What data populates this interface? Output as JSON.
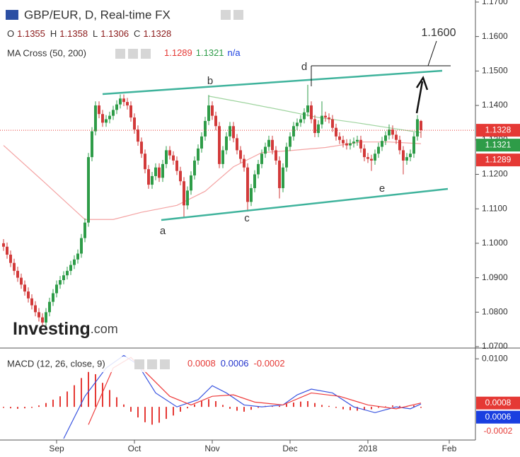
{
  "chart_data": [
    {
      "type": "candlestick",
      "title": "GBP/EUR, D, Real-time FX",
      "ohlc_legend": [
        {
          "label": "O",
          "value": 1.1355
        },
        {
          "label": "H",
          "value": 1.1358
        },
        {
          "label": "L",
          "value": 1.1306
        },
        {
          "label": "C",
          "value": 1.1328
        }
      ],
      "indicator": {
        "name": "MA Cross (50, 200)",
        "values": [
          1.1289,
          1.1321
        ],
        "colors": [
          "#e53935",
          "#2e9c48"
        ],
        "na": "n/a"
      },
      "colors": {
        "up": "#2e9c48",
        "down": "#d23a3a"
      },
      "open": [
        1.1,
        1.099,
        1.0967,
        1.0943,
        1.092,
        1.09,
        1.088,
        1.086,
        1.084,
        1.082,
        1.08,
        1.0785,
        1.077,
        1.08,
        1.083,
        1.0855,
        1.088,
        1.0893,
        1.0907,
        1.092,
        1.0937,
        1.0953,
        1.097,
        1.1015,
        1.106,
        1.125,
        1.1325,
        1.14,
        1.1375,
        1.135,
        1.136,
        1.137,
        1.1387,
        1.1403,
        1.142,
        1.141,
        1.14,
        1.1365,
        1.133,
        1.1295,
        1.126,
        1.1215,
        1.117,
        1.1195,
        1.122,
        1.119,
        1.123,
        1.127,
        1.1255,
        1.124,
        1.121,
        1.118,
        1.111,
        1.1153,
        1.1197,
        1.124,
        1.1275,
        1.131,
        1.1355,
        1.14,
        1.137,
        1.134,
        1.123,
        1.127,
        1.131,
        1.134,
        1.1305,
        1.127,
        1.1245,
        1.122,
        1.112,
        1.116,
        1.12,
        1.123,
        1.126,
        1.128,
        1.13,
        1.127,
        1.124,
        1.116,
        1.122,
        1.128,
        1.131,
        1.134,
        1.135,
        1.136,
        1.138,
        1.14,
        1.136,
        1.132,
        1.1345,
        1.137,
        1.1365,
        1.136,
        1.1335,
        1.131,
        1.13,
        1.129,
        1.1284,
        1.129,
        1.1295,
        1.13,
        1.1275,
        1.125,
        1.1245,
        1.124,
        1.126,
        1.128,
        1.1297,
        1.1313,
        1.133,
        1.1315,
        1.13,
        1.127,
        1.124,
        1.125,
        1.126,
        1.131,
        1.1355
      ],
      "high": [
        1.1012,
        1.1002,
        1.0979,
        1.0955,
        1.0932,
        1.0912,
        1.0892,
        1.0872,
        1.0852,
        1.0832,
        1.0812,
        1.0797,
        1.0812,
        1.0842,
        1.0867,
        1.0892,
        1.0905,
        1.0919,
        1.0932,
        1.0949,
        1.0965,
        1.0982,
        1.1027,
        1.1072,
        1.1262,
        1.1337,
        1.1412,
        1.1412,
        1.1387,
        1.1372,
        1.1382,
        1.1399,
        1.1415,
        1.1432,
        1.1432,
        1.1422,
        1.1412,
        1.1377,
        1.1342,
        1.1307,
        1.1272,
        1.1227,
        1.1207,
        1.1232,
        1.1232,
        1.1242,
        1.1282,
        1.1282,
        1.1267,
        1.1252,
        1.1222,
        1.1192,
        1.1165,
        1.1209,
        1.1252,
        1.1287,
        1.1322,
        1.1367,
        1.143,
        1.1412,
        1.1382,
        1.1352,
        1.1282,
        1.1322,
        1.1352,
        1.1352,
        1.1317,
        1.1282,
        1.1257,
        1.1232,
        1.1172,
        1.1212,
        1.1242,
        1.1272,
        1.1292,
        1.1312,
        1.1312,
        1.1282,
        1.1252,
        1.1232,
        1.1292,
        1.1322,
        1.1352,
        1.1362,
        1.1372,
        1.1392,
        1.146,
        1.1412,
        1.1372,
        1.1357,
        1.1412,
        1.1382,
        1.1377,
        1.1372,
        1.1347,
        1.1322,
        1.1312,
        1.1302,
        1.1302,
        1.1307,
        1.1312,
        1.1312,
        1.1287,
        1.1262,
        1.1257,
        1.1272,
        1.1292,
        1.1309,
        1.1325,
        1.1345,
        1.1342,
        1.1327,
        1.1312,
        1.1282,
        1.1262,
        1.1272,
        1.1322,
        1.1372,
        1.1358
      ],
      "low": [
        1.0978,
        1.0955,
        1.0931,
        1.0908,
        1.0888,
        1.0868,
        1.0848,
        1.0828,
        1.0808,
        1.0788,
        1.0773,
        1.0758,
        1.0758,
        1.0788,
        1.0818,
        1.0843,
        1.0868,
        1.0881,
        1.0895,
        1.0908,
        1.0925,
        1.0941,
        1.0958,
        1.1003,
        1.1048,
        1.1238,
        1.1313,
        1.1363,
        1.1338,
        1.1338,
        1.1348,
        1.1358,
        1.1375,
        1.1391,
        1.1398,
        1.1388,
        1.1353,
        1.1318,
        1.1283,
        1.1248,
        1.1203,
        1.1158,
        1.1158,
        1.1183,
        1.1178,
        1.1178,
        1.1218,
        1.1243,
        1.1228,
        1.1198,
        1.1168,
        1.1075,
        1.1098,
        1.1141,
        1.1185,
        1.1228,
        1.1263,
        1.1298,
        1.1343,
        1.1358,
        1.1328,
        1.1218,
        1.1218,
        1.1258,
        1.1298,
        1.1293,
        1.1258,
        1.1233,
        1.1208,
        1.1092,
        1.1108,
        1.1148,
        1.1188,
        1.1218,
        1.1248,
        1.1268,
        1.1258,
        1.1228,
        1.113,
        1.1148,
        1.1208,
        1.1268,
        1.1298,
        1.1328,
        1.1338,
        1.1348,
        1.1368,
        1.1348,
        1.1308,
        1.1308,
        1.1333,
        1.1353,
        1.1348,
        1.1323,
        1.1298,
        1.1288,
        1.1278,
        1.1272,
        1.1272,
        1.1278,
        1.1283,
        1.1263,
        1.1238,
        1.1233,
        1.121,
        1.1228,
        1.1248,
        1.1268,
        1.1285,
        1.1301,
        1.1303,
        1.1288,
        1.1258,
        1.12,
        1.1228,
        1.1238,
        1.1248,
        1.1298,
        1.1306
      ],
      "close": [
        1.099,
        1.0967,
        1.0943,
        1.092,
        1.09,
        1.088,
        1.086,
        1.084,
        1.082,
        1.08,
        1.0785,
        1.077,
        1.08,
        1.083,
        1.0855,
        1.088,
        1.0893,
        1.0907,
        1.092,
        1.0937,
        1.0953,
        1.097,
        1.1015,
        1.106,
        1.125,
        1.1325,
        1.14,
        1.1375,
        1.135,
        1.136,
        1.137,
        1.1387,
        1.1403,
        1.142,
        1.141,
        1.14,
        1.1365,
        1.133,
        1.1295,
        1.126,
        1.1215,
        1.117,
        1.1195,
        1.122,
        1.119,
        1.123,
        1.127,
        1.1255,
        1.124,
        1.121,
        1.118,
        1.111,
        1.1153,
        1.1197,
        1.124,
        1.1275,
        1.131,
        1.1355,
        1.14,
        1.137,
        1.134,
        1.123,
        1.127,
        1.131,
        1.134,
        1.1305,
        1.127,
        1.1245,
        1.122,
        1.112,
        1.116,
        1.12,
        1.123,
        1.126,
        1.128,
        1.13,
        1.127,
        1.124,
        1.116,
        1.122,
        1.128,
        1.131,
        1.134,
        1.135,
        1.136,
        1.138,
        1.14,
        1.136,
        1.132,
        1.1345,
        1.137,
        1.1365,
        1.136,
        1.1335,
        1.131,
        1.13,
        1.129,
        1.1284,
        1.129,
        1.1295,
        1.13,
        1.1275,
        1.125,
        1.1245,
        1.124,
        1.126,
        1.128,
        1.1297,
        1.1313,
        1.133,
        1.1315,
        1.13,
        1.127,
        1.124,
        1.125,
        1.126,
        1.131,
        1.136,
        1.1328
      ],
      "series": [
        {
          "color": "#f4a3a3",
          "x": [
            0,
            11,
            23,
            31,
            39,
            49,
            57,
            65,
            73,
            81,
            91,
            101,
            109,
            118
          ],
          "values": [
            1.1284,
            1.1182,
            1.1069,
            1.1069,
            1.109,
            1.111,
            1.1151,
            1.1222,
            1.1263,
            1.1269,
            1.1278,
            1.1294,
            1.1294,
            1.1289
          ]
        },
        {
          "color": "#9fd49f",
          "x": [
            58,
            69,
            79,
            89,
            99,
            109,
            118
          ],
          "values": [
            1.1427,
            1.1406,
            1.1386,
            1.1365,
            1.1351,
            1.1335,
            1.1321
          ]
        }
      ],
      "xlim": [
        -1,
        133
      ],
      "ylim": [
        1.07,
        1.1706
      ],
      "yticks": [
        {
          "value": 1.07,
          "label": "1.0700"
        },
        {
          "value": 1.08,
          "label": "1.0800"
        },
        {
          "value": 1.09,
          "label": "1.0900"
        },
        {
          "value": 1.1,
          "label": "1.1000"
        },
        {
          "value": 1.11,
          "label": "1.1100"
        },
        {
          "value": 1.12,
          "label": "1.1200"
        },
        {
          "value": 1.13,
          "label": "1.1300"
        },
        {
          "value": 1.14,
          "label": "1.1400"
        },
        {
          "value": 1.15,
          "label": "1.1500"
        },
        {
          "value": 1.16,
          "label": "1.1600"
        },
        {
          "value": 1.17,
          "label": "1.1700"
        }
      ],
      "price_tags": [
        {
          "value": 1.1328,
          "color": "#e53935"
        },
        {
          "value": 1.1321,
          "color": "#2e9c48"
        },
        {
          "value": 1.1289,
          "color": "#e53935"
        }
      ],
      "annotations": [
        "a",
        "b",
        "c",
        "d",
        "e",
        "1.1600"
      ],
      "watermark": [
        "Investing",
        ".com"
      ]
    },
    {
      "type": "macd",
      "title": "MACD (12, 26, close, 9)",
      "legend_values": [
        {
          "value": 0.0008,
          "color": "#e53935"
        },
        {
          "value": 0.0006,
          "color": "#2233cc"
        },
        {
          "value": -0.0002,
          "color": "#e53935"
        }
      ],
      "series": [
        {
          "color": "#3a55e0",
          "x": [
            17,
            23,
            29,
            34,
            38,
            43,
            49,
            55,
            59,
            63,
            68,
            73,
            79,
            83,
            87,
            93,
            99,
            105,
            111,
            115,
            118
          ],
          "values": [
            -0.0066,
            0.0022,
            0.0081,
            0.0107,
            0.0088,
            0.0029,
            0.0,
            0.0015,
            0.0044,
            0.0029,
            0.0004,
            0.0,
            0.0004,
            0.0025,
            0.0037,
            0.0029,
            0.0,
            -0.0012,
            0.0,
            -0.0004,
            0.0006
          ]
        },
        {
          "color": "#ee3b3b",
          "x": [
            24,
            31,
            36,
            41,
            47,
            53,
            59,
            65,
            71,
            79,
            87,
            95,
            103,
            111,
            118
          ],
          "values": [
            -0.0037,
            0.0081,
            0.0103,
            0.0066,
            0.0022,
            0.0004,
            0.0022,
            0.0025,
            0.001,
            0.0004,
            0.0029,
            0.0022,
            0.0004,
            -0.0004,
            0.0008
          ]
        }
      ],
      "histogram": {
        "color": "#e53935",
        "x": [
          0,
          2,
          4,
          6,
          8,
          10,
          12,
          14,
          16,
          18,
          20,
          22,
          24,
          26,
          28,
          30,
          32,
          34,
          36,
          38,
          40,
          42,
          44,
          46,
          48,
          50,
          52,
          54,
          56,
          58,
          60,
          62,
          64,
          66,
          68,
          70,
          72,
          74,
          76,
          78,
          80,
          82,
          84,
          86,
          88,
          90,
          92,
          94,
          96,
          98,
          100,
          102,
          104,
          106,
          108,
          110,
          112,
          114,
          116,
          118
        ],
        "values": [
          -0.0002,
          -0.0003,
          -0.0004,
          -0.0003,
          -0.0002,
          0.0003,
          0.0008,
          0.0015,
          0.0022,
          0.0032,
          0.0045,
          0.006,
          0.0075,
          0.0068,
          0.005,
          0.0035,
          0.002,
          0.0005,
          -0.001,
          -0.0022,
          -0.0032,
          -0.0037,
          -0.0033,
          -0.0025,
          -0.0018,
          -0.001,
          -0.0003,
          0.0005,
          0.0012,
          0.0016,
          0.0012,
          0.0004,
          -0.0004,
          -0.0008,
          -0.001,
          -0.0006,
          -0.0002,
          0.0002,
          0.0001,
          0.0002,
          0.0006,
          0.0009,
          0.0011,
          0.0012,
          0.0008,
          0.0004,
          0.0002,
          -0.0002,
          -0.0005,
          -0.0007,
          -0.0008,
          -0.0007,
          -0.0005,
          -0.0002,
          0.0001,
          0.0003,
          0.0002,
          0.0001,
          0.0003,
          -0.0002
        ]
      },
      "xlim": [
        -1,
        133
      ],
      "ylim": [
        -0.0069,
        0.0118
      ],
      "yticks": [
        {
          "value": 0.01,
          "label": "0.0100"
        }
      ],
      "xticks": [
        {
          "value": 15,
          "label": "Sep"
        },
        {
          "value": 37,
          "label": "Oct"
        },
        {
          "value": 59,
          "label": "Nov"
        },
        {
          "value": 81,
          "label": "Dec"
        },
        {
          "value": 103,
          "label": "2018"
        },
        {
          "value": 126,
          "label": "Feb"
        }
      ],
      "tags": [
        {
          "value": 0.0008,
          "bg": "#e53935",
          "fg": "#ffffff"
        },
        {
          "value": 0.0006,
          "bg": "#1a3fe0",
          "fg": "#ffffff"
        },
        {
          "value": -0.0002,
          "bg": "#ffffff",
          "fg": "#e53935"
        }
      ]
    }
  ]
}
